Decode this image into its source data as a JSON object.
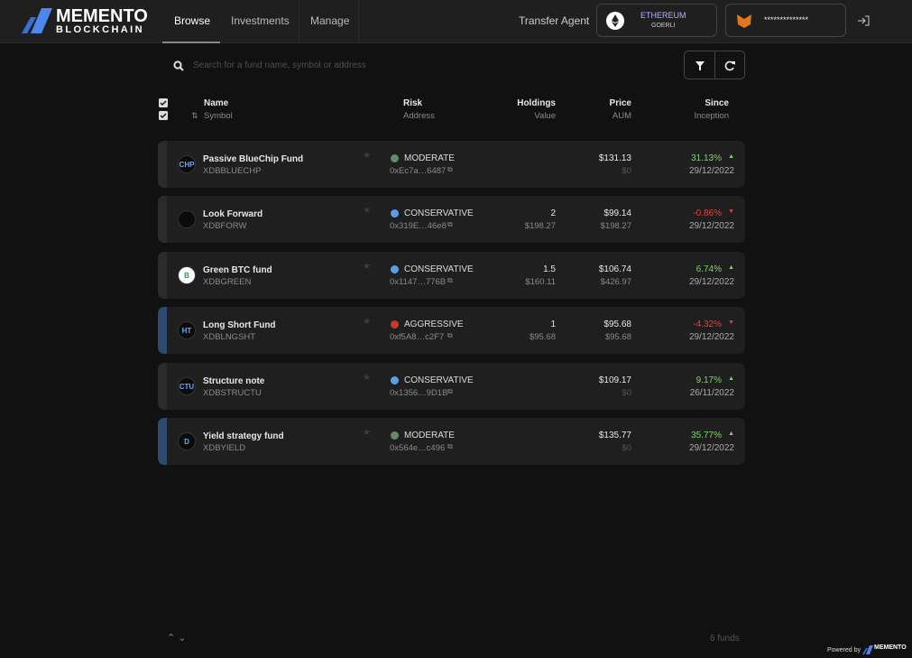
{
  "header": {
    "logo": "MEMENTO",
    "logo_sub": "BLOCKCHAIN",
    "nav": [
      "Browse",
      "Investments",
      "Manage"
    ],
    "transfer_agent": "Transfer Agent",
    "network": "ETHEREUM",
    "network_sub": "GOERLI",
    "wallet": "**************"
  },
  "search": {
    "placeholder": "Search for a fund name, symbol or address"
  },
  "columns": [
    {
      "title": "Name",
      "sub": "Symbol"
    },
    {
      "title": "Risk",
      "sub": "Address"
    },
    {
      "title": "Holdings",
      "sub": "Value"
    },
    {
      "title": "Price",
      "sub": "AUM"
    },
    {
      "title": "Since",
      "sub": "Inception"
    }
  ],
  "risk_colors": {
    "MODERATE": "#5e8c69",
    "CONSERVATIVE": "#5aa0e8",
    "AGGRESSIVE": "#c43a32"
  },
  "funds": [
    {
      "icon": "CHP",
      "name": "Passive BlueChip Fund",
      "symbol": "XDBBLUECHP",
      "risk": "MODERATE",
      "address": "0xEc7a…6487",
      "price": "$131.13",
      "aum": "$0",
      "since": "31.13%",
      "inception": "29/12/2022"
    },
    {
      "name": "Look Forward",
      "symbol": "XDBFORW",
      "risk": "CONSERVATIVE",
      "address": "0x319E…46e8",
      "holdings": "2",
      "value": "$198.27",
      "price": "$99.14",
      "aum": "$198.27",
      "since": "-0.86%",
      "inception": "29/12/2022"
    },
    {
      "icon": "B",
      "name": "Green BTC fund",
      "symbol": "XDBGREEN",
      "risk": "CONSERVATIVE",
      "address": "0x1147…776B",
      "holdings": "1.5",
      "value": "$160.11",
      "price": "$106.74",
      "aum": "$426.97",
      "since": "6.74%",
      "inception": "29/12/2022"
    },
    {
      "icon": "HT",
      "name": "Long Short Fund",
      "symbol": "XDBLNGSHT",
      "risk": "AGGRESSIVE",
      "address": "0xf5A8…c2F7",
      "holdings": "1",
      "value": "$95.68",
      "price": "$95.68",
      "aum": "$95.68",
      "since": "-4.32%",
      "inception": "29/12/2022",
      "highlighted": true
    },
    {
      "icon": "CTU",
      "name": "Structure note",
      "symbol": "XDBSTRUCTU",
      "risk": "CONSERVATIVE",
      "address": "0x1356…9D1B",
      "price": "$109.17",
      "aum": "$0",
      "since": "9.17%",
      "inception": "26/11/2022"
    },
    {
      "icon": "D",
      "name": "Yield strategy fund",
      "symbol": "XDBYIELD",
      "risk": "MODERATE",
      "address": "0x564e…c496",
      "price": "$135.77",
      "aum": "$0",
      "since": "35.77%",
      "inception": "29/12/2022",
      "highlighted": true
    }
  ],
  "footer": {
    "count": "6 funds",
    "powered": "Powered by",
    "brand": "MEMENTO"
  }
}
